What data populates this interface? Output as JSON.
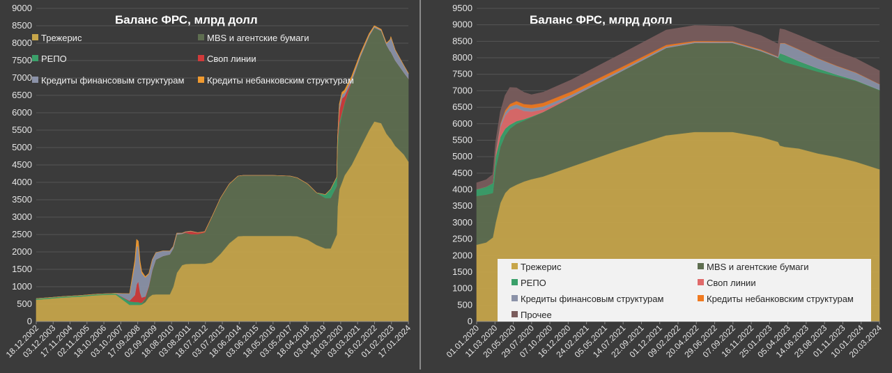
{
  "chart_data": [
    {
      "type": "area",
      "stacked": true,
      "title": "Баланс ФРС, млрд долл",
      "xlabel": "",
      "ylabel": "",
      "ylim": [
        0,
        9000
      ],
      "yticks": [
        "0",
        "500",
        "1000",
        "1500",
        "2000",
        "2500",
        "3000",
        "3500",
        "4000",
        "4500",
        "5000",
        "5500",
        "6000",
        "6500",
        "7000",
        "7500",
        "8000",
        "8500",
        "9000"
      ],
      "xticks": [
        "18.12.2002",
        "03.12.2003",
        "17.11.2004",
        "02.11.2005",
        "18.10.2006",
        "03.10.2007",
        "17.09.2008",
        "02.09.2009",
        "18.08.2010",
        "03.08.2011",
        "18.07.2012",
        "03.07.2013",
        "18.06.2014",
        "03.06.2015",
        "18.05.2016",
        "03.05.2017",
        "18.04.2018",
        "03.04.2019",
        "18.03.2020",
        "03.03.2021",
        "16.02.2022",
        "01.02.2023",
        "17.01.2024"
      ],
      "grid": true,
      "legend": "top",
      "x": [
        2002.96,
        2003.5,
        2004.5,
        2005.5,
        2006.5,
        2007.5,
        2008.3,
        2008.6,
        2008.7,
        2008.8,
        2008.9,
        2009.0,
        2009.2,
        2009.4,
        2009.6,
        2009.8,
        2010.2,
        2010.6,
        2010.8,
        2011.0,
        2011.3,
        2011.5,
        2011.8,
        2012.2,
        2012.6,
        2013.0,
        2013.5,
        2014.0,
        2014.5,
        2014.8,
        2015.5,
        2016.5,
        2017.5,
        2017.9,
        2018.5,
        2019.0,
        2019.5,
        2019.8,
        2020.15,
        2020.2,
        2020.3,
        2020.45,
        2020.6,
        2021.0,
        2021.5,
        2022.0,
        2022.3,
        2022.7,
        2023.0,
        2023.2,
        2023.25,
        2023.5,
        2024.0,
        2024.25
      ],
      "series": [
        {
          "name": "Трежерис",
          "color": "#c7a64a",
          "values": [
            630,
            650,
            690,
            720,
            760,
            780,
            480,
            480,
            480,
            480,
            480,
            490,
            560,
            700,
            770,
            780,
            780,
            780,
            1000,
            1400,
            1620,
            1650,
            1660,
            1660,
            1660,
            1700,
            1950,
            2250,
            2450,
            2460,
            2460,
            2460,
            2460,
            2450,
            2350,
            2200,
            2100,
            2100,
            2500,
            3300,
            3800,
            4000,
            4200,
            4500,
            5000,
            5500,
            5750,
            5700,
            5400,
            5270,
            5250,
            5050,
            4800,
            4600
          ]
        },
        {
          "name": "MBS и агентские бумаги",
          "color": "#5e6e50",
          "values": [
            0,
            0,
            0,
            0,
            0,
            0,
            0,
            0,
            0,
            0,
            0,
            0,
            100,
            300,
            700,
            1000,
            1100,
            1150,
            1100,
            1100,
            900,
            900,
            850,
            850,
            900,
            1300,
            1600,
            1700,
            1730,
            1740,
            1740,
            1740,
            1720,
            1680,
            1600,
            1500,
            1450,
            1450,
            1400,
            1650,
            1800,
            1950,
            2050,
            2400,
            2600,
            2700,
            2700,
            2650,
            2550,
            2500,
            2500,
            2450,
            2350,
            2380
          ]
        },
        {
          "name": "РЕПО",
          "color": "#3aa06a",
          "values": [
            30,
            30,
            30,
            30,
            30,
            30,
            100,
            80,
            80,
            80,
            60,
            50,
            0,
            0,
            0,
            0,
            0,
            0,
            0,
            0,
            0,
            0,
            0,
            0,
            0,
            0,
            0,
            0,
            0,
            0,
            0,
            0,
            0,
            0,
            0,
            0,
            100,
            250,
            250,
            200,
            120,
            60,
            30,
            1,
            1,
            1,
            1,
            1,
            1,
            1,
            2,
            2,
            1,
            1
          ]
        },
        {
          "name": "Своп линии",
          "color": "#d03a3a",
          "values": [
            0,
            0,
            0,
            0,
            0,
            0,
            20,
            200,
            500,
            600,
            300,
            150,
            60,
            20,
            10,
            0,
            0,
            0,
            0,
            0,
            0,
            20,
            80,
            40,
            20,
            0,
            0,
            0,
            0,
            0,
            0,
            0,
            0,
            0,
            0,
            0,
            0,
            0,
            0,
            50,
            350,
            400,
            200,
            1,
            1,
            1,
            1,
            1,
            1,
            1,
            1,
            1,
            1,
            1
          ]
        },
        {
          "name": "Кредиты финансовым структурам",
          "color": "#8b92a8",
          "values": [
            0,
            0,
            0,
            0,
            0,
            0,
            200,
            900,
            1100,
            1000,
            800,
            700,
            550,
            350,
            300,
            200,
            150,
            100,
            60,
            40,
            20,
            10,
            10,
            5,
            5,
            0,
            0,
            0,
            0,
            0,
            0,
            0,
            0,
            0,
            0,
            0,
            0,
            0,
            0,
            80,
            150,
            120,
            100,
            80,
            60,
            40,
            30,
            30,
            40,
            320,
            420,
            300,
            200,
            150
          ]
        },
        {
          "name": "Кредиты небанковским структурам",
          "color": "#f09a30",
          "values": [
            0,
            0,
            0,
            0,
            0,
            0,
            0,
            100,
            200,
            150,
            100,
            50,
            20,
            10,
            0,
            0,
            0,
            0,
            0,
            0,
            0,
            0,
            0,
            0,
            0,
            0,
            0,
            0,
            0,
            0,
            0,
            0,
            0,
            0,
            0,
            0,
            0,
            0,
            0,
            10,
            30,
            60,
            70,
            60,
            40,
            30,
            20,
            15,
            10,
            10,
            10,
            5,
            5,
            5
          ]
        }
      ]
    },
    {
      "type": "area",
      "stacked": true,
      "title": "Баланс ФРС, млрд долл",
      "xlabel": "",
      "ylabel": "",
      "ylim": [
        0,
        9500
      ],
      "yticks": [
        "0",
        "500",
        "1000",
        "1500",
        "2000",
        "2500",
        "3000",
        "3500",
        "4000",
        "4500",
        "5000",
        "5500",
        "6000",
        "6500",
        "7000",
        "7500",
        "8000",
        "8500",
        "9000",
        "9500"
      ],
      "xticks": [
        "01.01.2020",
        "11.03.2020",
        "20.05.2020",
        "29.07.2020",
        "07.10.2020",
        "16.12.2020",
        "24.02.2021",
        "05.05.2021",
        "14.07.2021",
        "22.09.2021",
        "01.12.2021",
        "09.02.2022",
        "20.04.2022",
        "29.06.2022",
        "07.09.2022",
        "16.11.2022",
        "25.01.2023",
        "05.04.2023",
        "14.06.2023",
        "23.08.2023",
        "01.11.2023",
        "10.01.2024",
        "20.03.2024"
      ],
      "grid": true,
      "legend": "bottom",
      "x": [
        2020.0,
        2020.1,
        2020.17,
        2020.2,
        2020.25,
        2020.3,
        2020.35,
        2020.42,
        2020.5,
        2020.58,
        2020.7,
        2021.0,
        2021.5,
        2022.0,
        2022.3,
        2022.7,
        2023.0,
        2023.18,
        2023.2,
        2023.25,
        2023.4,
        2023.6,
        2023.8,
        2024.0,
        2024.25
      ],
      "series": [
        {
          "name": "Трежерис",
          "color": "#c7a64a",
          "values": [
            2330,
            2400,
            2550,
            3000,
            3600,
            3900,
            4050,
            4150,
            4250,
            4320,
            4400,
            4700,
            5200,
            5650,
            5750,
            5750,
            5600,
            5450,
            5340,
            5300,
            5250,
            5100,
            4990,
            4850,
            4620
          ]
        },
        {
          "name": "MBS и агентские бумаги",
          "color": "#5e6e50",
          "values": [
            1480,
            1450,
            1350,
            1650,
            1700,
            1750,
            1800,
            1850,
            1850,
            1880,
            1950,
            2100,
            2350,
            2650,
            2700,
            2700,
            2600,
            2550,
            2600,
            2570,
            2500,
            2480,
            2450,
            2450,
            2400
          ]
        },
        {
          "name": "РЕПО",
          "color": "#3aa06a",
          "values": [
            200,
            240,
            300,
            350,
            300,
            200,
            120,
            80,
            40,
            20,
            5,
            1,
            1,
            1,
            1,
            1,
            1,
            1,
            200,
            220,
            150,
            100,
            50,
            20,
            10
          ]
        },
        {
          "name": "Своп линии",
          "color": "#e06a6a",
          "values": [
            0,
            0,
            0,
            100,
            300,
            400,
            450,
            400,
            250,
            150,
            80,
            10,
            1,
            1,
            1,
            1,
            1,
            1,
            1,
            1,
            1,
            1,
            1,
            1,
            1
          ]
        },
        {
          "name": "Кредиты финансовым структурам",
          "color": "#8b92a8",
          "values": [
            0,
            0,
            0,
            40,
            80,
            100,
            100,
            110,
            110,
            100,
            90,
            70,
            50,
            40,
            30,
            30,
            30,
            30,
            300,
            350,
            350,
            300,
            260,
            230,
            170
          ]
        },
        {
          "name": "Кредиты небанковским структурам",
          "color": "#f07a20",
          "values": [
            0,
            0,
            0,
            0,
            30,
            60,
            80,
            100,
            100,
            110,
            110,
            100,
            80,
            50,
            30,
            20,
            20,
            10,
            10,
            10,
            10,
            10,
            10,
            10,
            5
          ]
        },
        {
          "name": "Прочее",
          "color": "#7a5c5c",
          "values": [
            200,
            210,
            260,
            300,
            350,
            450,
            500,
            400,
            350,
            300,
            320,
            350,
            400,
            450,
            470,
            450,
            420,
            380,
            430,
            400,
            420,
            450,
            430,
            420,
            400
          ]
        }
      ]
    }
  ]
}
